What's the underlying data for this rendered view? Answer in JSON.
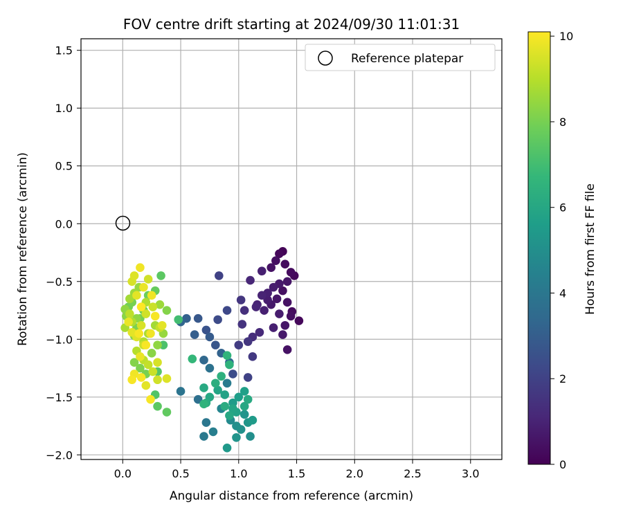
{
  "chart_data": {
    "type": "scatter",
    "title": "FOV centre drift starting at 2024/09/30 11:01:31",
    "xlabel": "Angular distance from reference (arcmin)",
    "ylabel": "Rotation from reference (arcmin)",
    "xlim": [
      -0.36,
      3.27
    ],
    "ylim": [
      -2.04,
      1.6
    ],
    "xticks": [
      "0.0",
      "0.5",
      "1.0",
      "1.5",
      "2.0",
      "2.5",
      "3.0"
    ],
    "yticks": [
      "1.5",
      "1.0",
      "0.5",
      "0.0",
      "−0.5",
      "−1.0",
      "−1.5",
      "−2.0"
    ],
    "grid": true,
    "legend": {
      "position": "top-right",
      "entries": [
        "Reference platepar"
      ]
    },
    "reference_point": {
      "x": 0.0,
      "y": 0.0,
      "marker": "open-circle"
    },
    "colorbar": {
      "label": "Hours from first FF file",
      "min": 0,
      "max": 10.1,
      "ticks": [
        "0",
        "2",
        "4",
        "6",
        "8",
        "10"
      ],
      "colormap": [
        "#440154",
        "#482878",
        "#3e4989",
        "#31688e",
        "#26828e",
        "#1f9e89",
        "#35b779",
        "#6ece58",
        "#b5de2b",
        "#fde725"
      ]
    },
    "series": [
      {
        "color_by": "hours",
        "points": [
          [
            1.38,
            -0.24,
            0.1
          ],
          [
            1.35,
            -0.26,
            0.2
          ],
          [
            1.32,
            -0.32,
            0.4
          ],
          [
            1.4,
            -0.35,
            0.3
          ],
          [
            1.28,
            -0.38,
            0.5
          ],
          [
            1.45,
            -0.42,
            0.3
          ],
          [
            1.48,
            -0.45,
            0.2
          ],
          [
            1.42,
            -0.5,
            0.6
          ],
          [
            1.35,
            -0.52,
            0.7
          ],
          [
            1.3,
            -0.55,
            0.8
          ],
          [
            1.38,
            -0.58,
            0.4
          ],
          [
            1.25,
            -0.6,
            0.9
          ],
          [
            1.2,
            -0.62,
            1.0
          ],
          [
            1.33,
            -0.65,
            0.6
          ],
          [
            1.42,
            -0.68,
            0.5
          ],
          [
            1.28,
            -0.7,
            0.7
          ],
          [
            1.15,
            -0.72,
            1.1
          ],
          [
            1.22,
            -0.75,
            0.9
          ],
          [
            1.35,
            -0.78,
            0.8
          ],
          [
            1.45,
            -0.8,
            0.4
          ],
          [
            1.52,
            -0.84,
            0.2
          ],
          [
            1.4,
            -0.88,
            0.6
          ],
          [
            1.3,
            -0.9,
            0.9
          ],
          [
            1.18,
            -0.94,
            1.2
          ],
          [
            1.12,
            -0.98,
            1.3
          ],
          [
            1.38,
            -0.96,
            0.7
          ],
          [
            1.46,
            -0.76,
            0.3
          ],
          [
            1.42,
            -1.09,
            0.5
          ],
          [
            1.2,
            -0.41,
            0.9
          ],
          [
            1.1,
            -0.49,
            1.1
          ],
          [
            1.25,
            -0.66,
            0.8
          ],
          [
            1.16,
            -0.7,
            1.0
          ],
          [
            1.05,
            -0.75,
            1.4
          ],
          [
            1.03,
            -0.87,
            1.5
          ],
          [
            1.08,
            -1.02,
            1.6
          ],
          [
            1.0,
            -1.05,
            1.8
          ],
          [
            1.12,
            -1.15,
            1.7
          ],
          [
            1.08,
            -1.33,
            2.0
          ],
          [
            0.95,
            -1.3,
            2.4
          ],
          [
            1.02,
            -0.66,
            1.6
          ],
          [
            0.9,
            -0.75,
            2.2
          ],
          [
            0.83,
            -0.45,
            2.0
          ],
          [
            0.82,
            -0.83,
            2.3
          ],
          [
            0.72,
            -0.92,
            2.6
          ],
          [
            0.65,
            -0.82,
            2.8
          ],
          [
            0.62,
            -0.96,
            3.0
          ],
          [
            0.55,
            -0.82,
            3.1
          ],
          [
            0.5,
            -0.85,
            3.3
          ],
          [
            0.75,
            -0.98,
            2.9
          ],
          [
            0.8,
            -1.05,
            2.7
          ],
          [
            0.85,
            -1.12,
            3.2
          ],
          [
            0.92,
            -1.2,
            3.6
          ],
          [
            0.7,
            -1.18,
            3.4
          ],
          [
            0.75,
            -1.25,
            3.8
          ],
          [
            0.9,
            -1.38,
            4.2
          ],
          [
            0.65,
            -1.52,
            3.7
          ],
          [
            0.5,
            -1.45,
            3.9
          ],
          [
            0.72,
            -1.72,
            4.0
          ],
          [
            0.7,
            -1.84,
            4.1
          ],
          [
            0.78,
            -1.8,
            4.3
          ],
          [
            0.85,
            -1.6,
            4.6
          ],
          [
            0.93,
            -1.7,
            4.8
          ],
          [
            0.98,
            -1.75,
            5.0
          ],
          [
            1.02,
            -1.78,
            5.1
          ],
          [
            1.05,
            -1.65,
            5.2
          ],
          [
            1.08,
            -1.72,
            5.3
          ],
          [
            1.1,
            -1.84,
            5.0
          ],
          [
            0.98,
            -1.85,
            5.2
          ],
          [
            0.9,
            -1.94,
            5.4
          ],
          [
            1.12,
            -1.7,
            5.5
          ],
          [
            0.95,
            -1.55,
            5.5
          ],
          [
            1.0,
            -1.5,
            5.6
          ],
          [
            1.05,
            -1.45,
            5.7
          ],
          [
            0.88,
            -1.48,
            5.8
          ],
          [
            0.82,
            -1.44,
            5.9
          ],
          [
            0.75,
            -1.5,
            6.0
          ],
          [
            0.7,
            -1.42,
            6.1
          ],
          [
            0.72,
            -1.55,
            6.2
          ],
          [
            0.8,
            -1.38,
            6.3
          ],
          [
            0.85,
            -1.32,
            6.4
          ],
          [
            0.92,
            -1.22,
            6.5
          ],
          [
            0.9,
            -1.14,
            6.6
          ],
          [
            0.6,
            -1.17,
            6.7
          ],
          [
            0.7,
            -1.56,
            6.5
          ],
          [
            0.95,
            -1.6,
            5.9
          ],
          [
            0.98,
            -1.63,
            5.8
          ],
          [
            1.05,
            -1.58,
            6.0
          ],
          [
            1.08,
            -1.52,
            6.1
          ],
          [
            0.88,
            -1.58,
            6.2
          ],
          [
            0.92,
            -1.66,
            6.0
          ],
          [
            0.48,
            -0.83,
            7.0
          ],
          [
            0.35,
            -1.05,
            7.2
          ],
          [
            0.3,
            -1.28,
            7.4
          ],
          [
            0.28,
            -1.48,
            7.3
          ],
          [
            0.3,
            -1.58,
            7.5
          ],
          [
            0.38,
            -1.63,
            7.6
          ],
          [
            0.33,
            -0.45,
            7.5
          ],
          [
            0.28,
            -0.58,
            7.7
          ],
          [
            0.22,
            -0.62,
            7.8
          ],
          [
            0.18,
            -0.75,
            7.9
          ],
          [
            0.15,
            -0.82,
            8.0
          ],
          [
            0.12,
            -0.9,
            8.1
          ],
          [
            0.1,
            -0.97,
            8.2
          ],
          [
            0.08,
            -0.68,
            8.0
          ],
          [
            0.05,
            -0.72,
            7.9
          ],
          [
            0.03,
            -0.8,
            8.3
          ],
          [
            0.02,
            -0.74,
            8.4
          ],
          [
            0.1,
            -1.2,
            8.2
          ],
          [
            0.15,
            -1.25,
            8.1
          ],
          [
            0.2,
            -1.3,
            8.0
          ],
          [
            0.25,
            -1.12,
            8.3
          ],
          [
            0.3,
            -1.05,
            8.4
          ],
          [
            0.35,
            -0.95,
            8.5
          ],
          [
            0.38,
            -0.75,
            8.2
          ],
          [
            0.32,
            -0.7,
            8.6
          ],
          [
            0.28,
            -0.88,
            8.7
          ],
          [
            0.22,
            -0.95,
            8.8
          ],
          [
            0.18,
            -1.02,
            8.9
          ],
          [
            0.14,
            -0.55,
            8.5
          ],
          [
            0.1,
            -0.6,
            8.6
          ],
          [
            0.06,
            -0.65,
            8.7
          ],
          [
            0.08,
            -0.85,
            8.9
          ],
          [
            0.12,
            -1.1,
            9.0
          ],
          [
            0.18,
            -1.18,
            9.1
          ],
          [
            0.22,
            -1.22,
            9.2
          ],
          [
            0.26,
            -1.28,
            9.3
          ],
          [
            0.3,
            -1.35,
            9.4
          ],
          [
            0.32,
            -0.9,
            9.2
          ],
          [
            0.26,
            -0.72,
            9.3
          ],
          [
            0.2,
            -0.78,
            9.4
          ],
          [
            0.16,
            -0.88,
            9.5
          ],
          [
            0.12,
            -0.98,
            9.6
          ],
          [
            0.08,
            -0.94,
            9.7
          ],
          [
            0.05,
            -0.85,
            9.8
          ],
          [
            0.15,
            -0.38,
            9.9
          ],
          [
            0.1,
            -0.45,
            9.6
          ],
          [
            0.08,
            -0.5,
            9.5
          ],
          [
            0.12,
            -0.62,
            9.7
          ],
          [
            0.18,
            -0.55,
            9.8
          ],
          [
            0.22,
            -0.48,
            9.4
          ],
          [
            0.25,
            -0.62,
            9.9
          ],
          [
            0.28,
            -0.8,
            10.0
          ],
          [
            0.24,
            -0.95,
            9.9
          ],
          [
            0.2,
            -1.05,
            10.0
          ],
          [
            0.15,
            -1.15,
            9.8
          ],
          [
            0.1,
            -1.3,
            9.9
          ],
          [
            0.08,
            -1.35,
            10.0
          ],
          [
            0.16,
            -1.33,
            10.0
          ],
          [
            0.2,
            -1.4,
            9.7
          ],
          [
            0.24,
            -1.52,
            10.0
          ],
          [
            0.38,
            -1.34,
            9.6
          ],
          [
            0.3,
            -1.2,
            9.5
          ],
          [
            0.34,
            -0.88,
            9.7
          ],
          [
            0.16,
            -0.72,
            10.1
          ],
          [
            0.14,
            -0.95,
            10.0
          ],
          [
            0.18,
            -1.05,
            9.3
          ],
          [
            0.06,
            -0.78,
            9.1
          ],
          [
            0.02,
            -0.9,
            8.8
          ],
          [
            0.12,
            -0.82,
            8.4
          ],
          [
            0.2,
            -0.68,
            8.9
          ]
        ]
      }
    ]
  }
}
